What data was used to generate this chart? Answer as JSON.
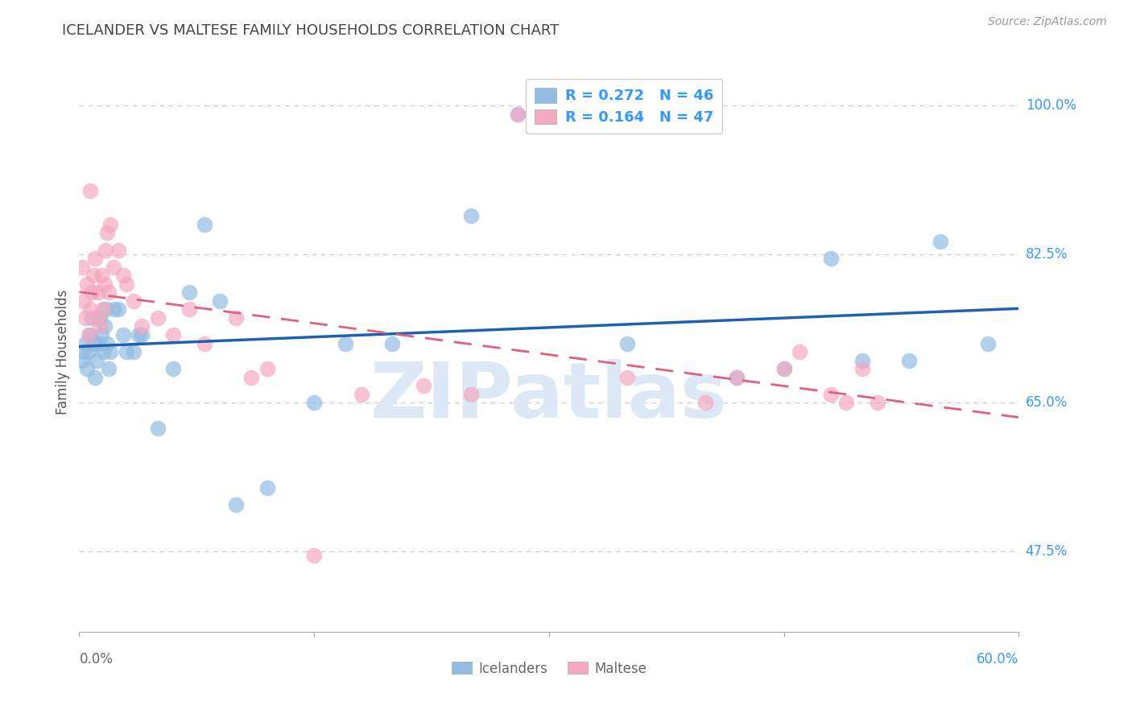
{
  "title": "ICELANDER VS MALTESE FAMILY HOUSEHOLDS CORRELATION CHART",
  "source": "Source: ZipAtlas.com",
  "ylabel": "Family Households",
  "xlim": [
    0.0,
    0.6
  ],
  "ylim": [
    0.38,
    1.04
  ],
  "ytick_positions": [
    0.475,
    0.65,
    0.825,
    1.0
  ],
  "ytick_labels": [
    "47.5%",
    "65.0%",
    "82.5%",
    "100.0%"
  ],
  "grid_color": "#c8c8c8",
  "background_color": "#ffffff",
  "icelander_color": "#92bce0",
  "maltese_color": "#f5a8c0",
  "icelander_line_color": "#2060b0",
  "maltese_line_color": "#e06080",
  "R_icelander": 0.272,
  "N_icelander": 46,
  "R_maltese": 0.164,
  "N_maltese": 47,
  "watermark_color": "#dce8f5",
  "legend_label_color": "#3399ff",
  "legend_rn_color": "#333333",
  "axis_tick_color": "#3399ff",
  "bottom_label_color": "#666666",
  "icelander_x": [
    0.002,
    0.003,
    0.004,
    0.005,
    0.006,
    0.007,
    0.008,
    0.009,
    0.01,
    0.011,
    0.012,
    0.013,
    0.014,
    0.015,
    0.016,
    0.017,
    0.018,
    0.019,
    0.02,
    0.022,
    0.025,
    0.028,
    0.03,
    0.035,
    0.038,
    0.04,
    0.05,
    0.06,
    0.07,
    0.08,
    0.09,
    0.1,
    0.12,
    0.15,
    0.17,
    0.2,
    0.25,
    0.28,
    0.35,
    0.42,
    0.45,
    0.48,
    0.5,
    0.53,
    0.55,
    0.58
  ],
  "icelander_y": [
    0.7,
    0.71,
    0.72,
    0.69,
    0.71,
    0.73,
    0.75,
    0.72,
    0.68,
    0.7,
    0.72,
    0.75,
    0.73,
    0.71,
    0.74,
    0.76,
    0.72,
    0.69,
    0.71,
    0.76,
    0.76,
    0.73,
    0.71,
    0.71,
    0.73,
    0.73,
    0.62,
    0.69,
    0.78,
    0.86,
    0.77,
    0.53,
    0.55,
    0.65,
    0.72,
    0.72,
    0.87,
    0.99,
    0.72,
    0.68,
    0.69,
    0.82,
    0.7,
    0.7,
    0.84,
    0.72
  ],
  "maltese_x": [
    0.002,
    0.003,
    0.004,
    0.005,
    0.006,
    0.007,
    0.007,
    0.008,
    0.009,
    0.01,
    0.011,
    0.012,
    0.013,
    0.014,
    0.015,
    0.016,
    0.017,
    0.018,
    0.019,
    0.02,
    0.022,
    0.025,
    0.028,
    0.03,
    0.035,
    0.04,
    0.05,
    0.06,
    0.07,
    0.08,
    0.1,
    0.11,
    0.12,
    0.15,
    0.18,
    0.22,
    0.25,
    0.28,
    0.35,
    0.4,
    0.42,
    0.45,
    0.46,
    0.48,
    0.49,
    0.5,
    0.51
  ],
  "maltese_y": [
    0.81,
    0.77,
    0.75,
    0.79,
    0.73,
    0.76,
    0.9,
    0.78,
    0.8,
    0.82,
    0.75,
    0.78,
    0.74,
    0.8,
    0.76,
    0.79,
    0.83,
    0.85,
    0.78,
    0.86,
    0.81,
    0.83,
    0.8,
    0.79,
    0.77,
    0.74,
    0.75,
    0.73,
    0.76,
    0.72,
    0.75,
    0.68,
    0.69,
    0.47,
    0.66,
    0.67,
    0.66,
    0.99,
    0.68,
    0.65,
    0.68,
    0.69,
    0.71,
    0.66,
    0.65,
    0.69,
    0.65
  ]
}
